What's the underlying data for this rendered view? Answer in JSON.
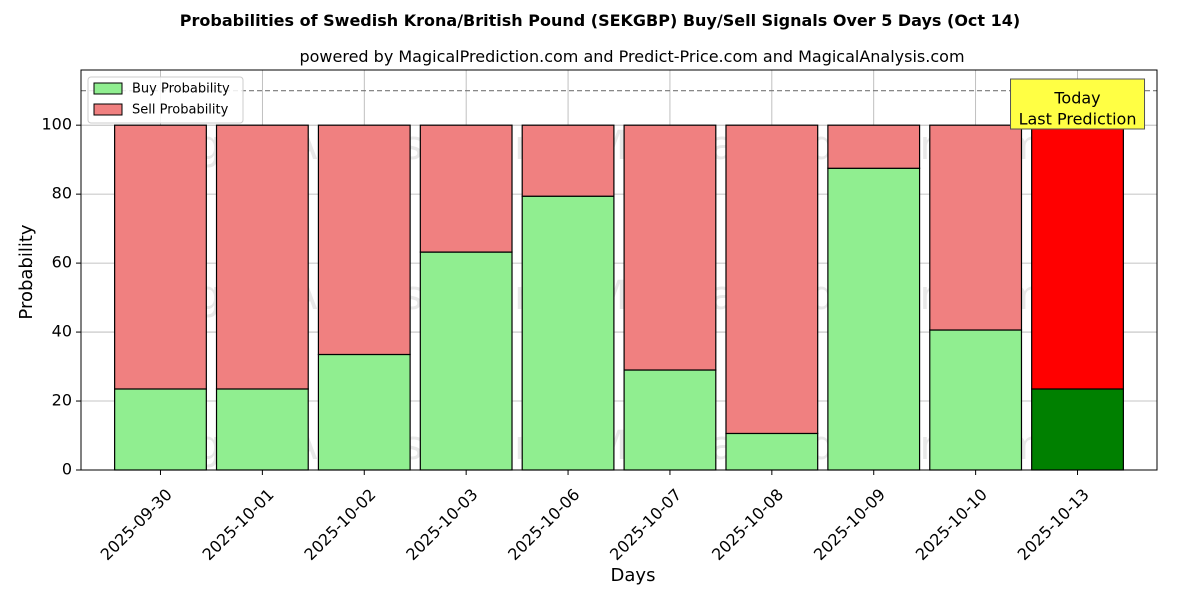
{
  "chart_data": {
    "type": "bar",
    "title": "Probabilities of Swedish Krona/British Pound (SEKGBP) Buy/Sell Signals Over 5 Days (Oct 14)",
    "subtitle": "powered by MagicalPrediction.com and Predict-Price.com and MagicalAnalysis.com",
    "xlabel": "Days",
    "ylabel": "Probability",
    "ylim": [
      0,
      116
    ],
    "yticks": [
      0,
      20,
      40,
      60,
      80,
      100
    ],
    "grid": true,
    "stacked": true,
    "reference_line": 110,
    "legend_position": "top-left",
    "categories": [
      "2025-09-30",
      "2025-10-01",
      "2025-10-02",
      "2025-10-03",
      "2025-10-06",
      "2025-10-07",
      "2025-10-08",
      "2025-10-09",
      "2025-10-10",
      "2025-10-13"
    ],
    "series": [
      {
        "name": "Buy Probability",
        "color": "#90ee90",
        "values": [
          23.5,
          23.5,
          33.5,
          63.2,
          79.4,
          29.0,
          10.6,
          87.5,
          40.6,
          23.5
        ]
      },
      {
        "name": "Sell Probability",
        "color": "#f08080",
        "values": [
          76.5,
          76.5,
          66.5,
          36.8,
          20.6,
          71.0,
          89.4,
          12.5,
          59.4,
          76.5
        ]
      }
    ],
    "highlight": {
      "index": 9,
      "buy_color": "#008000",
      "sell_color": "#ff0000"
    },
    "annotation": {
      "lines": [
        "Today",
        "Last Prediction"
      ],
      "color": "#ffff44"
    },
    "watermarks": [
      "MagicalAnalysis.com",
      "MagicalPrediction.com"
    ]
  }
}
